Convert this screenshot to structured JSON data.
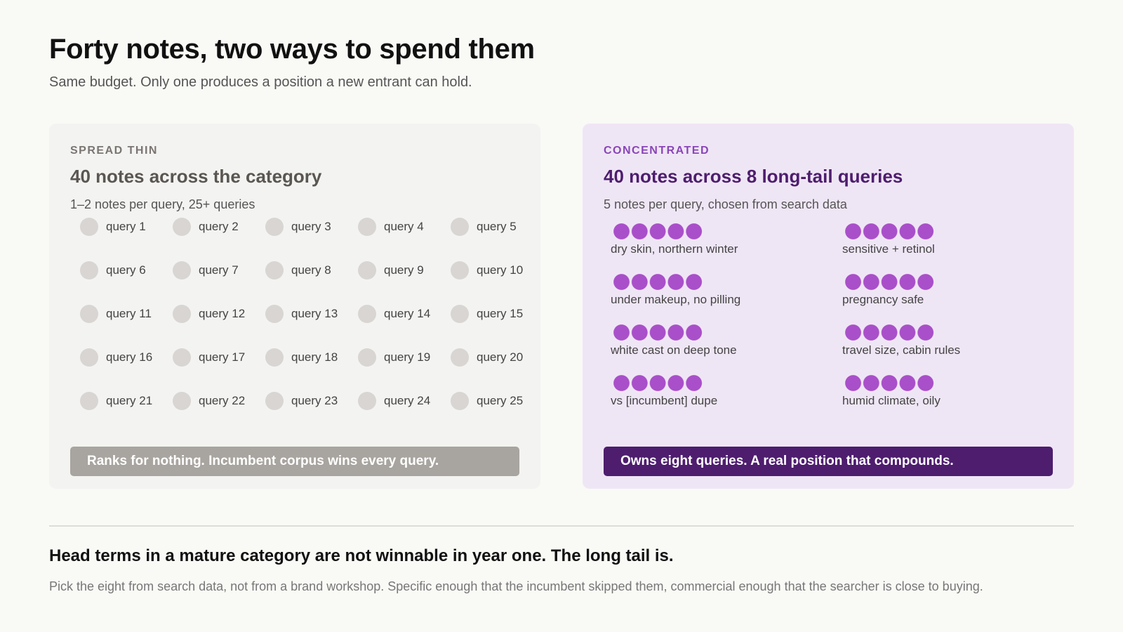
{
  "header": {
    "title": "Forty notes, two ways to spend them",
    "subtitle": "Same budget. Only one produces a position a new entrant can hold."
  },
  "panels": [
    {
      "eyebrow": "SPREAD THIN",
      "heading": "40 notes across the category",
      "subheading": "1–2 notes per query, 25+ queries",
      "queries": [
        "query 1",
        "query 2",
        "query 3",
        "query 4",
        "query 5",
        "query 6",
        "query 7",
        "query 8",
        "query 9",
        "query 10",
        "query 11",
        "query 12",
        "query 13",
        "query 14",
        "query 15",
        "query 16",
        "query 17",
        "query 18",
        "query 19",
        "query 20",
        "query 21",
        "query 22",
        "query 23",
        "query 24",
        "query 25"
      ],
      "verdict": "Ranks for nothing. Incumbent corpus wins every query."
    },
    {
      "eyebrow": "CONCENTRATED",
      "heading": "40 notes across 8 long-tail queries",
      "subheading": "5 notes per query, chosen from search data",
      "queries": [
        "dry skin, northern winter",
        "sensitive + retinol",
        "under makeup, no pilling",
        "pregnancy safe",
        "white cast on deep tone",
        "travel size, cabin rules",
        "vs [incumbent] dupe",
        "humid climate, oily"
      ],
      "verdict": "Owns eight queries. A real position that compounds."
    }
  ],
  "footer": {
    "heading": "Head terms in a mature category are not winnable in year one. The long tail is.",
    "text": "Pick the eight from search data, not from a brand workshop. Specific enough that the incumbent skipped them, commercial enough that the searcher is close to buying."
  }
}
